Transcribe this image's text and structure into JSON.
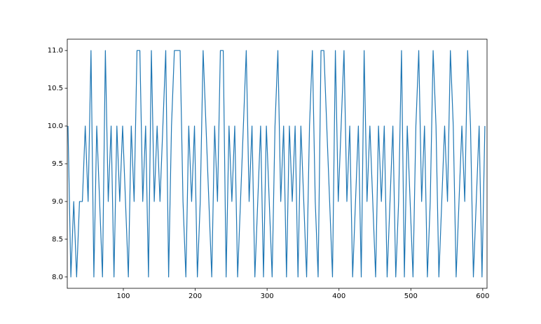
{
  "chart_data": {
    "type": "line",
    "x": [
      23,
      27,
      31,
      35,
      39,
      43,
      47,
      51,
      55,
      59,
      63,
      67,
      71,
      75,
      79,
      83,
      87,
      91,
      95,
      99,
      103,
      107,
      111,
      115,
      119,
      123,
      127,
      131,
      135,
      139,
      143,
      147,
      151,
      155,
      159,
      163,
      167,
      171,
      175,
      179,
      183,
      187,
      191,
      195,
      199,
      203,
      207,
      211,
      215,
      219,
      223,
      227,
      231,
      235,
      239,
      243,
      247,
      251,
      255,
      259,
      263,
      267,
      271,
      275,
      279,
      283,
      287,
      291,
      295,
      299,
      303,
      307,
      311,
      315,
      319,
      323,
      327,
      331,
      335,
      339,
      343,
      347,
      351,
      355,
      359,
      363,
      367,
      371,
      375,
      379,
      383,
      387,
      391,
      395,
      399,
      403,
      407,
      411,
      415,
      419,
      423,
      427,
      431,
      435,
      439,
      443,
      447,
      451,
      455,
      459,
      463,
      467,
      471,
      475,
      479,
      483,
      487,
      491,
      495,
      499,
      503,
      507,
      511,
      515,
      519,
      523,
      527,
      531,
      535,
      539,
      543,
      547,
      551,
      555,
      559,
      563,
      567,
      571,
      575,
      579,
      583,
      587,
      591,
      595,
      599,
      603
    ],
    "series": [
      {
        "color": "#1f77b4",
        "values": [
          10,
          8,
          9,
          8,
          9,
          9,
          10,
          9,
          11,
          8,
          10,
          9,
          8,
          11,
          9,
          10,
          8,
          10,
          9,
          10,
          9,
          8,
          10,
          9,
          11,
          11,
          9,
          10,
          8,
          11,
          9,
          10,
          9,
          10,
          11,
          8,
          10,
          11,
          11,
          11,
          9,
          8,
          10,
          9,
          10,
          8,
          9,
          11,
          10,
          9,
          8,
          10,
          9,
          11,
          11,
          8,
          10,
          9,
          10,
          8,
          9,
          10,
          11,
          9,
          10,
          8,
          9,
          10,
          8,
          10,
          9,
          8,
          10,
          11,
          9,
          10,
          8,
          10,
          9,
          10,
          8,
          10,
          9,
          8,
          10,
          11,
          9,
          8,
          11,
          11,
          10,
          9,
          8,
          11,
          9,
          10,
          11,
          9,
          10,
          8,
          9,
          10,
          8,
          11,
          9,
          10,
          9,
          8,
          10,
          9,
          10,
          8,
          9,
          10,
          8,
          9,
          11,
          8,
          10,
          9,
          8,
          10,
          11,
          9,
          10,
          8,
          9,
          11,
          10,
          8,
          9,
          10,
          9,
          11,
          10,
          8,
          9,
          10,
          9,
          11,
          10,
          8,
          9,
          10,
          8,
          10
        ]
      }
    ],
    "xlim": [
      22,
      606
    ],
    "ylim": [
      7.85,
      11.15
    ],
    "xticks": [
      100,
      200,
      300,
      400,
      500,
      600
    ],
    "yticks": [
      {
        "value": 8,
        "label": "8.0"
      },
      8.5,
      {
        "value": 9,
        "label": "9.0"
      },
      9.5,
      {
        "value": 10,
        "label": "10.0"
      },
      10.5,
      {
        "value": 11,
        "label": "11.0"
      }
    ]
  }
}
